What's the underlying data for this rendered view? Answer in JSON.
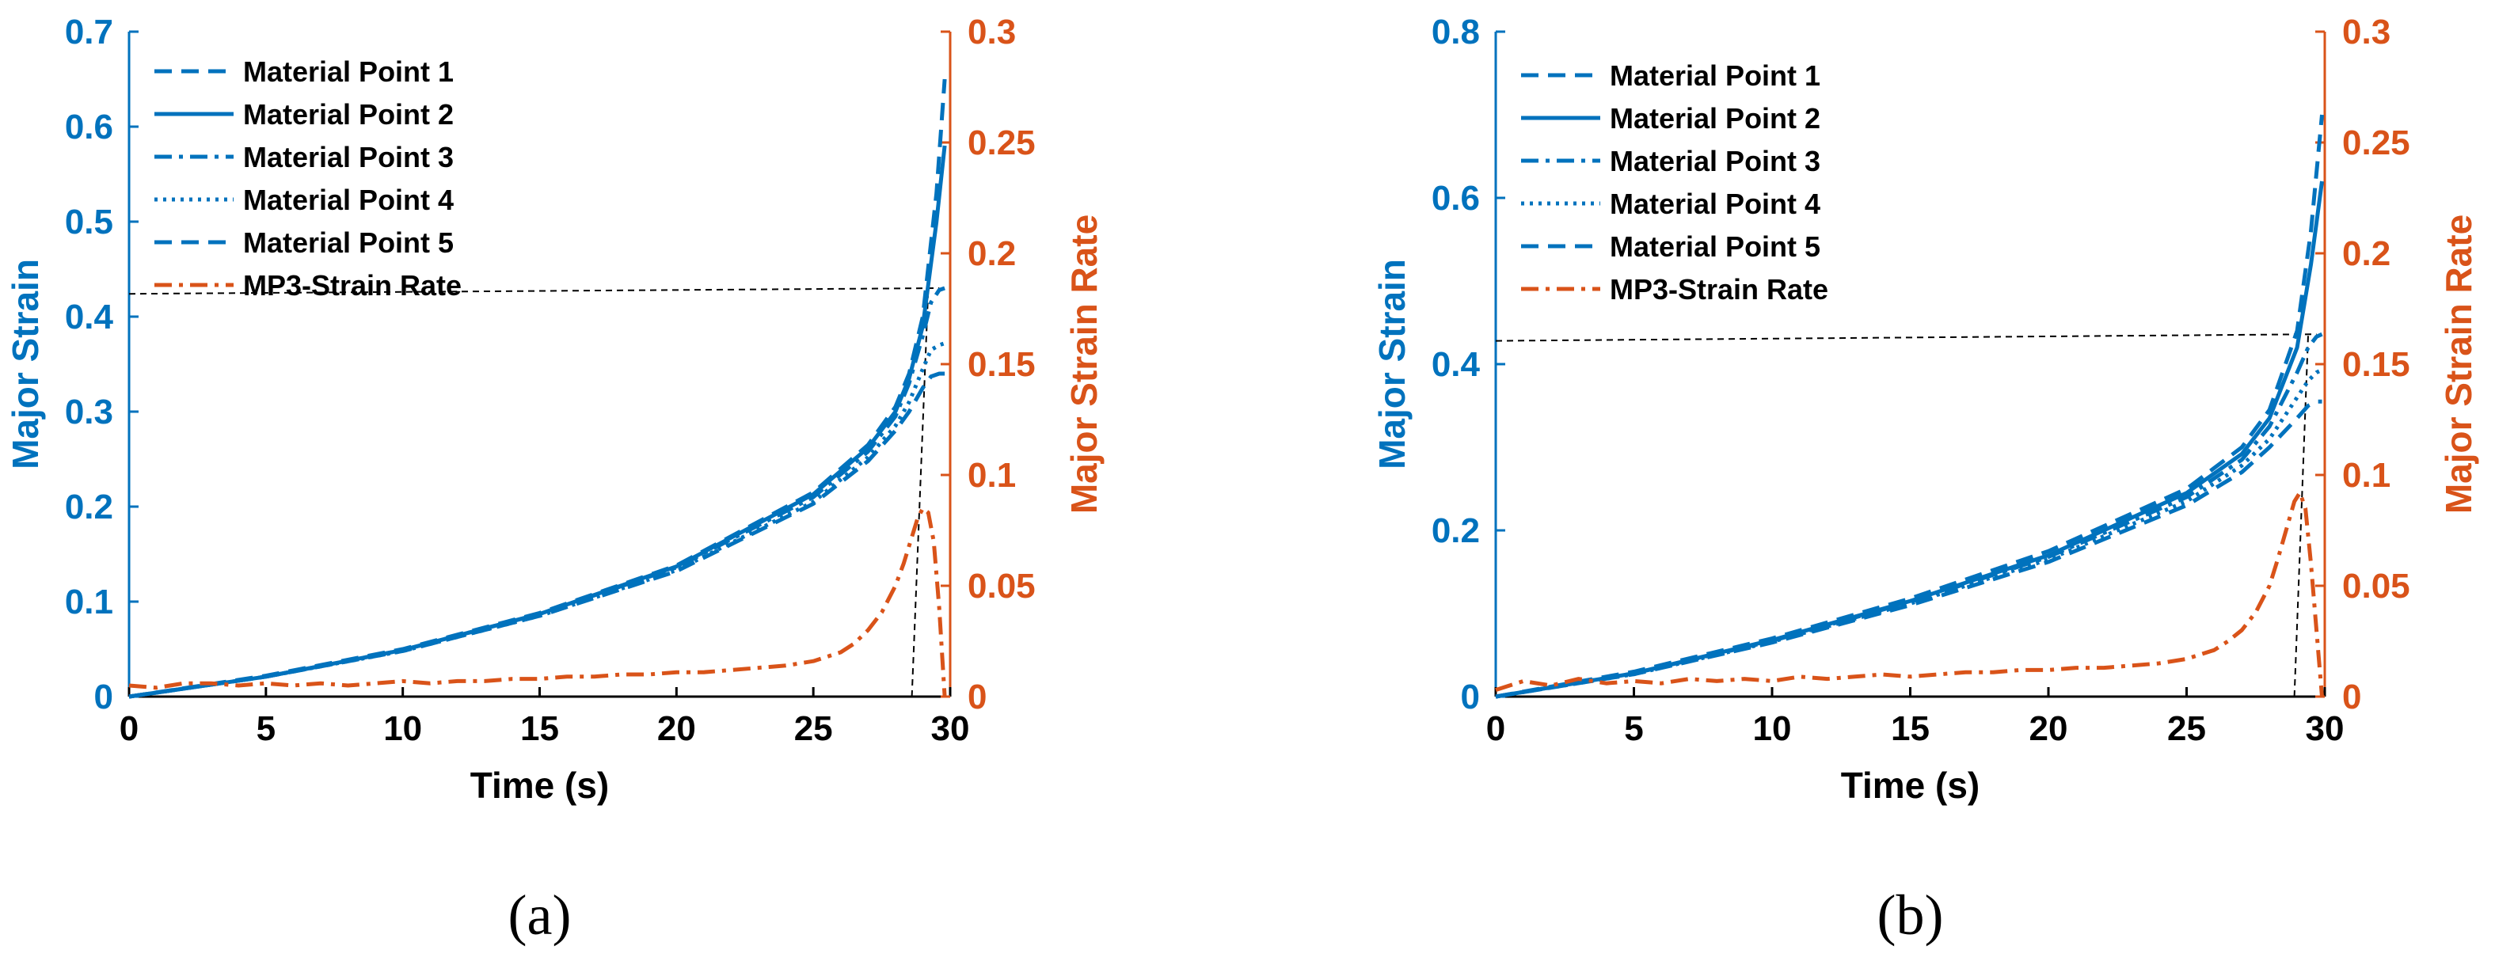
{
  "colors": {
    "blue": "#0072BD",
    "orange": "#D95319",
    "black": "#000000"
  },
  "chart_data": [
    {
      "id": "a",
      "type": "line",
      "panel_label": "(a)",
      "xlabel": "Time (s)",
      "ylabel_left": "Major Strain",
      "ylabel_right": "Major Strain Rate",
      "xlim": [
        0,
        30
      ],
      "ylim_left": [
        0,
        0.7
      ],
      "ylim_right": [
        0,
        0.3
      ],
      "xticks": [
        "0",
        "5",
        "10",
        "15",
        "20",
        "25",
        "30"
      ],
      "yticks_left": [
        "0",
        "0.1",
        "0.2",
        "0.3",
        "0.4",
        "0.5",
        "0.6",
        "0.7"
      ],
      "yticks_right": [
        "0",
        "0.05",
        "0.1",
        "0.15",
        "0.2",
        "0.25",
        "0.3"
      ],
      "grid": false,
      "legend_position": "top-left",
      "series": [
        {
          "name": "Material Point 1",
          "axis": "left",
          "style": "dashed",
          "x": [
            0,
            5,
            10,
            15,
            20,
            25,
            27,
            28,
            28.5,
            29,
            29.5,
            29.8
          ],
          "y": [
            0,
            0.022,
            0.05,
            0.088,
            0.138,
            0.215,
            0.265,
            0.305,
            0.34,
            0.4,
            0.53,
            0.65
          ]
        },
        {
          "name": "Material Point 2",
          "axis": "left",
          "style": "solid",
          "x": [
            0,
            5,
            10,
            15,
            20,
            25,
            27,
            28,
            28.5,
            29,
            29.5,
            29.8
          ],
          "y": [
            0,
            0.021,
            0.049,
            0.087,
            0.137,
            0.213,
            0.262,
            0.3,
            0.335,
            0.39,
            0.5,
            0.58
          ]
        },
        {
          "name": "Material Point 3",
          "axis": "left",
          "style": "dashdot",
          "x": [
            0,
            5,
            10,
            15,
            20,
            25,
            27,
            28,
            28.5,
            29,
            29.3,
            29.6,
            29.8
          ],
          "y": [
            0,
            0.021,
            0.049,
            0.087,
            0.136,
            0.21,
            0.258,
            0.295,
            0.33,
            0.38,
            0.415,
            0.428,
            0.43
          ]
        },
        {
          "name": "Material Point 4",
          "axis": "left",
          "style": "dotted",
          "x": [
            0,
            5,
            10,
            15,
            20,
            25,
            27,
            28,
            28.5,
            29,
            29.3,
            29.6,
            29.8
          ],
          "y": [
            0,
            0.021,
            0.048,
            0.085,
            0.133,
            0.205,
            0.252,
            0.285,
            0.31,
            0.345,
            0.365,
            0.37,
            0.372
          ]
        },
        {
          "name": "Material Point 5",
          "axis": "left",
          "style": "dashed",
          "x": [
            0,
            5,
            10,
            15,
            20,
            25,
            27,
            28,
            28.5,
            29,
            29.3,
            29.6,
            29.8
          ],
          "y": [
            0,
            0.021,
            0.048,
            0.085,
            0.132,
            0.203,
            0.248,
            0.28,
            0.3,
            0.325,
            0.337,
            0.34,
            0.34
          ]
        },
        {
          "name": "MP3-Strain Rate",
          "axis": "right",
          "style": "dashdot",
          "color": "orange",
          "x": [
            0,
            1,
            2,
            3,
            4,
            5,
            6,
            7,
            8,
            9,
            10,
            11,
            12,
            13,
            14,
            15,
            16,
            17,
            18,
            19,
            20,
            21,
            22,
            23,
            24,
            25,
            25.5,
            26,
            26.5,
            27,
            27.5,
            28,
            28.3,
            28.6,
            28.8,
            29,
            29.2,
            29.4,
            29.6,
            29.8
          ],
          "y": [
            0.005,
            0.004,
            0.006,
            0.006,
            0.005,
            0.006,
            0.005,
            0.006,
            0.005,
            0.006,
            0.007,
            0.006,
            0.007,
            0.007,
            0.008,
            0.008,
            0.009,
            0.009,
            0.01,
            0.01,
            0.011,
            0.011,
            0.012,
            0.013,
            0.014,
            0.016,
            0.018,
            0.02,
            0.024,
            0.03,
            0.038,
            0.05,
            0.06,
            0.072,
            0.08,
            0.085,
            0.083,
            0.07,
            0.04,
            0.0
          ]
        }
      ],
      "annotations": [
        {
          "type": "guide-line",
          "x": [
            0,
            29.6
          ],
          "y_left": [
            0.424,
            0.43
          ]
        },
        {
          "type": "guide-line",
          "x": [
            28.6,
            29.2
          ],
          "y_left": [
            0.0,
            0.43
          ]
        }
      ]
    },
    {
      "id": "b",
      "type": "line",
      "panel_label": "(b)",
      "xlabel": "Time (s)",
      "ylabel_left": "Major Strain",
      "ylabel_right": "Major Strain Rate",
      "xlim": [
        0,
        30
      ],
      "ylim_left": [
        0,
        0.8
      ],
      "ylim_right": [
        0,
        0.3
      ],
      "xticks": [
        "0",
        "5",
        "10",
        "15",
        "20",
        "25",
        "30"
      ],
      "yticks_left": [
        "0",
        "0.2",
        "0.4",
        "0.6",
        "0.8"
      ],
      "yticks_right": [
        "0",
        "0.05",
        "0.1",
        "0.15",
        "0.2",
        "0.25",
        "0.3"
      ],
      "grid": false,
      "legend_position": "top-left",
      "series": [
        {
          "name": "Material Point 1",
          "axis": "left",
          "style": "dashed",
          "x": [
            0,
            5,
            10,
            15,
            20,
            25,
            27,
            28,
            29,
            29.5,
            29.9
          ],
          "y": [
            0,
            0.03,
            0.07,
            0.118,
            0.175,
            0.25,
            0.3,
            0.345,
            0.44,
            0.56,
            0.7
          ]
        },
        {
          "name": "Material Point 2",
          "axis": "left",
          "style": "solid",
          "x": [
            0,
            5,
            10,
            15,
            20,
            25,
            27,
            28,
            29,
            29.5,
            29.9
          ],
          "y": [
            0,
            0.028,
            0.068,
            0.115,
            0.17,
            0.245,
            0.292,
            0.335,
            0.42,
            0.52,
            0.62
          ]
        },
        {
          "name": "Material Point 3",
          "axis": "left",
          "style": "dashdot",
          "x": [
            0,
            5,
            10,
            15,
            20,
            25,
            27,
            28,
            29,
            29.4,
            29.7,
            29.9
          ],
          "y": [
            0,
            0.028,
            0.067,
            0.114,
            0.168,
            0.24,
            0.285,
            0.325,
            0.39,
            0.42,
            0.433,
            0.436
          ]
        },
        {
          "name": "Material Point 4",
          "axis": "left",
          "style": "dotted",
          "x": [
            0,
            5,
            10,
            15,
            20,
            25,
            27,
            28,
            29,
            29.4,
            29.7,
            29.9
          ],
          "y": [
            0,
            0.027,
            0.066,
            0.112,
            0.165,
            0.235,
            0.278,
            0.31,
            0.36,
            0.38,
            0.39,
            0.393
          ]
        },
        {
          "name": "Material Point 5",
          "axis": "left",
          "style": "dashed",
          "x": [
            0,
            5,
            10,
            15,
            20,
            25,
            27,
            28,
            29,
            29.4,
            29.7,
            29.9
          ],
          "y": [
            0,
            0.027,
            0.065,
            0.11,
            0.162,
            0.23,
            0.27,
            0.3,
            0.335,
            0.35,
            0.355,
            0.355
          ]
        },
        {
          "name": "MP3-Strain Rate",
          "axis": "right",
          "style": "dashdot",
          "color": "orange",
          "x": [
            0,
            1,
            2,
            3,
            4,
            5,
            6,
            7,
            8,
            9,
            10,
            11,
            12,
            13,
            14,
            15,
            16,
            17,
            18,
            19,
            20,
            21,
            22,
            23,
            24,
            25,
            25.5,
            26,
            26.5,
            27,
            27.5,
            28,
            28.3,
            28.6,
            28.9,
            29.1,
            29.3,
            29.5,
            29.7,
            29.9
          ],
          "y": [
            0.003,
            0.007,
            0.005,
            0.008,
            0.006,
            0.007,
            0.006,
            0.008,
            0.007,
            0.008,
            0.007,
            0.009,
            0.008,
            0.009,
            0.01,
            0.009,
            0.01,
            0.011,
            0.011,
            0.012,
            0.012,
            0.013,
            0.013,
            0.014,
            0.015,
            0.017,
            0.019,
            0.021,
            0.025,
            0.03,
            0.038,
            0.05,
            0.062,
            0.075,
            0.088,
            0.092,
            0.085,
            0.06,
            0.03,
            0.0
          ]
        }
      ],
      "annotations": [
        {
          "type": "guide-line",
          "x": [
            0,
            29.7
          ],
          "y_left": [
            0.428,
            0.436
          ]
        },
        {
          "type": "guide-line",
          "x": [
            28.9,
            29.4
          ],
          "y_left": [
            0.0,
            0.436
          ]
        }
      ]
    }
  ]
}
